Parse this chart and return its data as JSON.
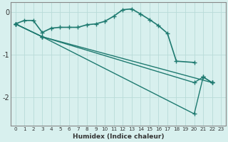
{
  "xlabel": "Humidex (Indice chaleur)",
  "bg_color": "#d8f0ee",
  "grid_color": "#b8dbd8",
  "line_color": "#1e7a70",
  "xlim": [
    -0.5,
    23.5
  ],
  "ylim": [
    -2.65,
    0.22
  ],
  "yticks": [
    0,
    -1,
    -2
  ],
  "series": [
    {
      "x": [
        0,
        1,
        2,
        3,
        4,
        5,
        6,
        7,
        8,
        9,
        10,
        11,
        12,
        13,
        14,
        15,
        16,
        17,
        18,
        20
      ],
      "y": [
        -0.28,
        -0.2,
        -0.2,
        -0.48,
        -0.38,
        -0.36,
        -0.36,
        -0.36,
        -0.3,
        -0.28,
        -0.22,
        -0.1,
        0.05,
        0.07,
        -0.05,
        -0.18,
        -0.32,
        -0.5,
        -1.15,
        -1.18
      ],
      "marker": "+",
      "markersize": 4,
      "linewidth": 1.2
    },
    {
      "x": [
        0,
        3,
        22
      ],
      "y": [
        -0.28,
        -0.58,
        -1.65
      ],
      "marker": "+",
      "markersize": 4,
      "linewidth": 1.0
    },
    {
      "x": [
        0,
        3,
        20,
        21,
        22
      ],
      "y": [
        -0.28,
        -0.58,
        -1.65,
        -1.52,
        -1.65
      ],
      "marker": "+",
      "markersize": 4,
      "linewidth": 1.0
    },
    {
      "x": [
        0,
        3,
        20,
        21,
        22
      ],
      "y": [
        -0.28,
        -0.58,
        -2.38,
        -1.52,
        -1.65
      ],
      "marker": "+",
      "markersize": 4,
      "linewidth": 1.0
    }
  ]
}
